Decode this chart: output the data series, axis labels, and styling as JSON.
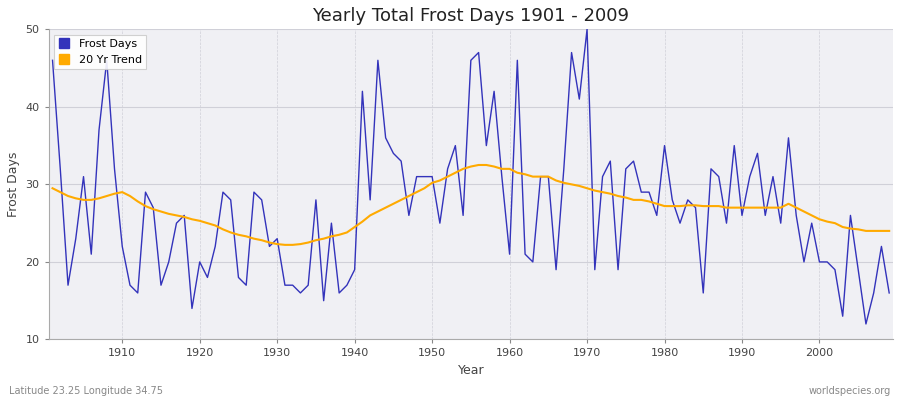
{
  "title": "Yearly Total Frost Days 1901 - 2009",
  "xlabel": "Year",
  "ylabel": "Frost Days",
  "bottom_left_label": "Latitude 23.25 Longitude 34.75",
  "bottom_right_label": "worldspecies.org",
  "ylim": [
    10,
    50
  ],
  "xlim": [
    1901,
    2009
  ],
  "plot_bg_color": "#f0f0f4",
  "fig_bg_color": "#ffffff",
  "grid_color_h": "#d0d0d8",
  "grid_color_v": "#d0d0d8",
  "frost_color": "#3333bb",
  "trend_color": "#ffaa00",
  "years": [
    1901,
    1902,
    1903,
    1904,
    1905,
    1906,
    1907,
    1908,
    1909,
    1910,
    1911,
    1912,
    1913,
    1914,
    1915,
    1916,
    1917,
    1918,
    1919,
    1920,
    1921,
    1922,
    1923,
    1924,
    1925,
    1926,
    1927,
    1928,
    1929,
    1930,
    1931,
    1932,
    1933,
    1934,
    1935,
    1936,
    1937,
    1938,
    1939,
    1940,
    1941,
    1942,
    1943,
    1944,
    1945,
    1946,
    1947,
    1948,
    1949,
    1950,
    1951,
    1952,
    1953,
    1954,
    1955,
    1956,
    1957,
    1958,
    1959,
    1960,
    1961,
    1962,
    1963,
    1964,
    1965,
    1966,
    1967,
    1968,
    1969,
    1970,
    1971,
    1972,
    1973,
    1974,
    1975,
    1976,
    1977,
    1978,
    1979,
    1980,
    1981,
    1982,
    1983,
    1984,
    1985,
    1986,
    1987,
    1988,
    1989,
    1990,
    1991,
    1992,
    1993,
    1994,
    1995,
    1996,
    1997,
    1998,
    1999,
    2000,
    2001,
    2002,
    2003,
    2004,
    2005,
    2006,
    2007,
    2008,
    2009
  ],
  "frost_days": [
    46,
    32,
    17,
    23,
    31,
    21,
    37,
    46,
    32,
    22,
    17,
    16,
    29,
    27,
    17,
    20,
    25,
    26,
    14,
    20,
    18,
    22,
    29,
    28,
    18,
    17,
    29,
    28,
    22,
    23,
    17,
    17,
    16,
    17,
    28,
    15,
    25,
    16,
    17,
    19,
    42,
    28,
    46,
    36,
    34,
    33,
    26,
    31,
    31,
    31,
    25,
    32,
    35,
    26,
    46,
    47,
    35,
    42,
    31,
    21,
    46,
    21,
    20,
    31,
    31,
    19,
    32,
    47,
    41,
    50,
    19,
    31,
    33,
    19,
    32,
    33,
    29,
    29,
    26,
    35,
    28,
    25,
    28,
    27,
    16,
    32,
    31,
    25,
    35,
    26,
    31,
    34,
    26,
    31,
    25,
    36,
    26,
    20,
    25,
    20,
    20,
    19,
    13,
    26,
    19,
    12,
    16,
    22,
    16
  ],
  "trend_years": [
    1901,
    1902,
    1903,
    1904,
    1905,
    1906,
    1907,
    1908,
    1909,
    1910,
    1911,
    1912,
    1913,
    1914,
    1915,
    1916,
    1917,
    1918,
    1919,
    1920,
    1921,
    1922,
    1923,
    1924,
    1925,
    1926,
    1927,
    1928,
    1929,
    1930,
    1931,
    1932,
    1933,
    1934,
    1935,
    1936,
    1937,
    1938,
    1939,
    1940,
    1941,
    1942,
    1943,
    1944,
    1945,
    1946,
    1947,
    1948,
    1949,
    1950,
    1951,
    1952,
    1953,
    1954,
    1955,
    1956,
    1957,
    1958,
    1959,
    1960,
    1961,
    1962,
    1963,
    1964,
    1965,
    1966,
    1967,
    1968,
    1969,
    1970,
    1971,
    1972,
    1973,
    1974,
    1975,
    1976,
    1977,
    1978,
    1979,
    1980,
    1981,
    1982,
    1983,
    1984,
    1985,
    1986,
    1987,
    1988,
    1989,
    1990,
    1991,
    1992,
    1993,
    1994,
    1995,
    1996,
    1997,
    1998,
    1999,
    2000,
    2001,
    2002,
    2003,
    2004,
    2005,
    2006,
    2007,
    2008,
    2009
  ],
  "trend_values": [
    29.5,
    29.0,
    28.5,
    28.2,
    28.0,
    28.0,
    28.2,
    28.5,
    28.8,
    29.0,
    28.5,
    27.8,
    27.2,
    26.8,
    26.5,
    26.2,
    26.0,
    25.8,
    25.5,
    25.3,
    25.0,
    24.7,
    24.2,
    23.8,
    23.5,
    23.3,
    23.0,
    22.8,
    22.5,
    22.3,
    22.2,
    22.2,
    22.3,
    22.5,
    22.8,
    23.0,
    23.3,
    23.5,
    23.8,
    24.5,
    25.2,
    26.0,
    26.5,
    27.0,
    27.5,
    28.0,
    28.5,
    29.0,
    29.5,
    30.2,
    30.5,
    31.0,
    31.5,
    32.0,
    32.3,
    32.5,
    32.5,
    32.3,
    32.0,
    32.0,
    31.5,
    31.3,
    31.0,
    31.0,
    31.0,
    30.5,
    30.2,
    30.0,
    29.8,
    29.5,
    29.2,
    29.0,
    28.8,
    28.5,
    28.3,
    28.0,
    28.0,
    27.8,
    27.5,
    27.2,
    27.2,
    27.2,
    27.3,
    27.3,
    27.2,
    27.2,
    27.2,
    27.0,
    27.0,
    27.0,
    27.0,
    27.0,
    27.0,
    27.0,
    27.0,
    27.5,
    27.0,
    26.5,
    26.0,
    25.5,
    25.2,
    25.0,
    24.5,
    24.3,
    24.2,
    24.0,
    24.0,
    24.0,
    24.0
  ]
}
